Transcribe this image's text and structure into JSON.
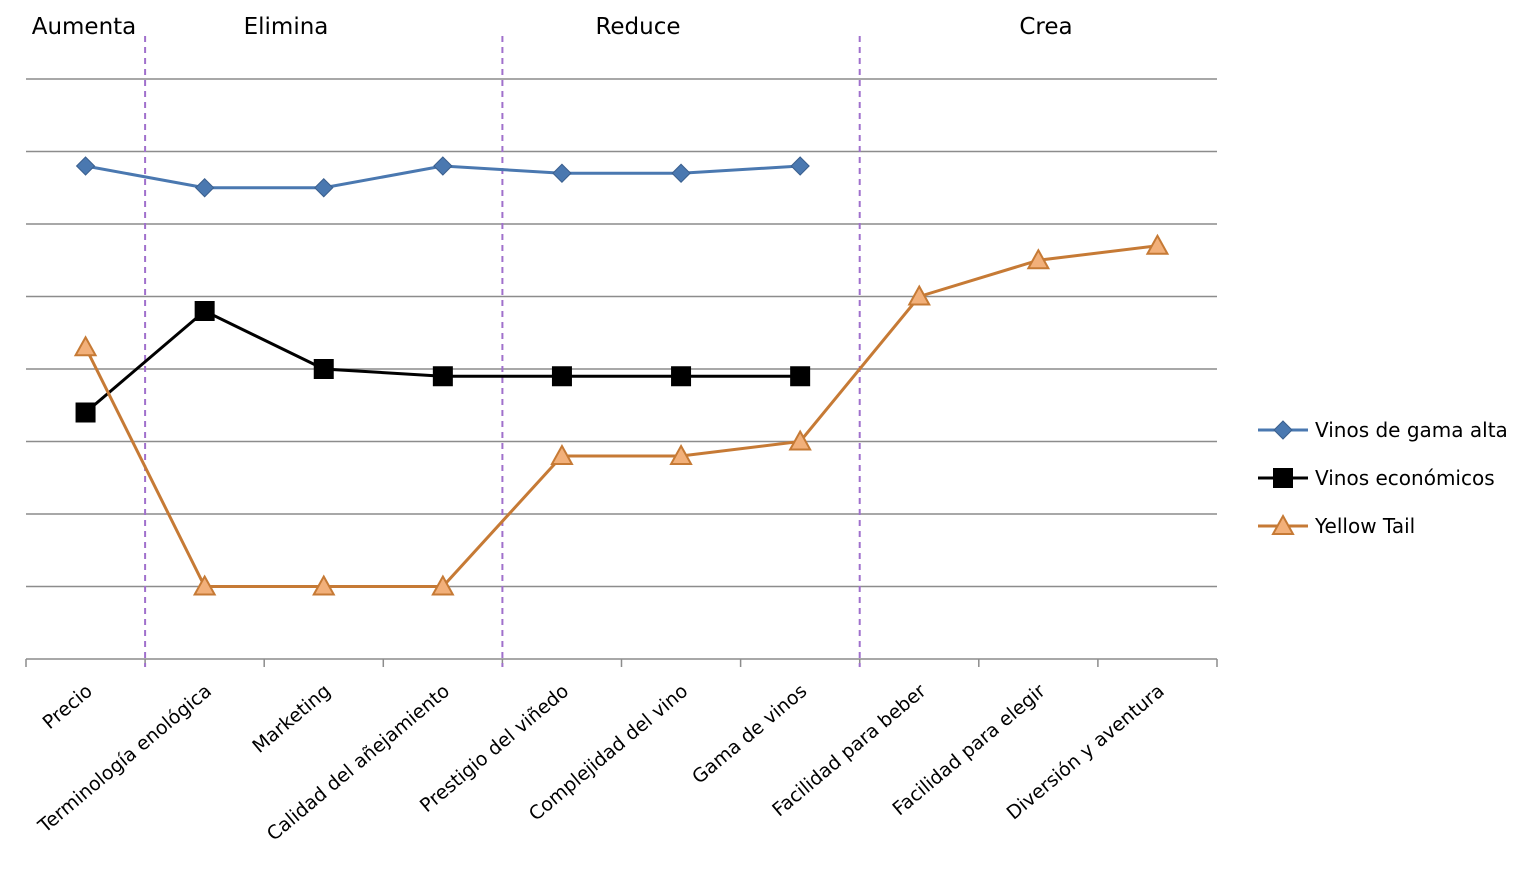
{
  "chart_data": {
    "type": "line",
    "categories": [
      "Precio",
      "Terminología enológica",
      "Marketing",
      "Calidad del añejamiento",
      "Prestigio del viñedo",
      "Complejidad del vino",
      "Gama de vinos",
      "Facilidad para beber",
      "Facilidad para elegir",
      "Diversión y aventura"
    ],
    "sections": [
      {
        "label": "Aumenta"
      },
      {
        "label": "Elimina"
      },
      {
        "label": "Reduce"
      },
      {
        "label": "Crea"
      }
    ],
    "ylim": [
      0,
      8
    ],
    "grid": true,
    "legend_position": "right",
    "series": [
      {
        "name": "Vinos de gama alta",
        "color": "#4a78b0",
        "marker": "diamond",
        "values": [
          6.8,
          6.5,
          6.5,
          6.8,
          6.7,
          6.7,
          6.8,
          null,
          null,
          null
        ]
      },
      {
        "name": "Vinos económicos",
        "color": "#000000",
        "marker": "square",
        "values": [
          3.4,
          4.8,
          4.0,
          3.9,
          3.9,
          3.9,
          3.9,
          null,
          null,
          null
        ]
      },
      {
        "name": "Yellow Tail",
        "color": "#c67a35",
        "marker": "triangle",
        "values": [
          4.3,
          1.0,
          1.0,
          1.0,
          2.8,
          2.8,
          3.0,
          5.0,
          5.5,
          5.7
        ]
      }
    ]
  }
}
